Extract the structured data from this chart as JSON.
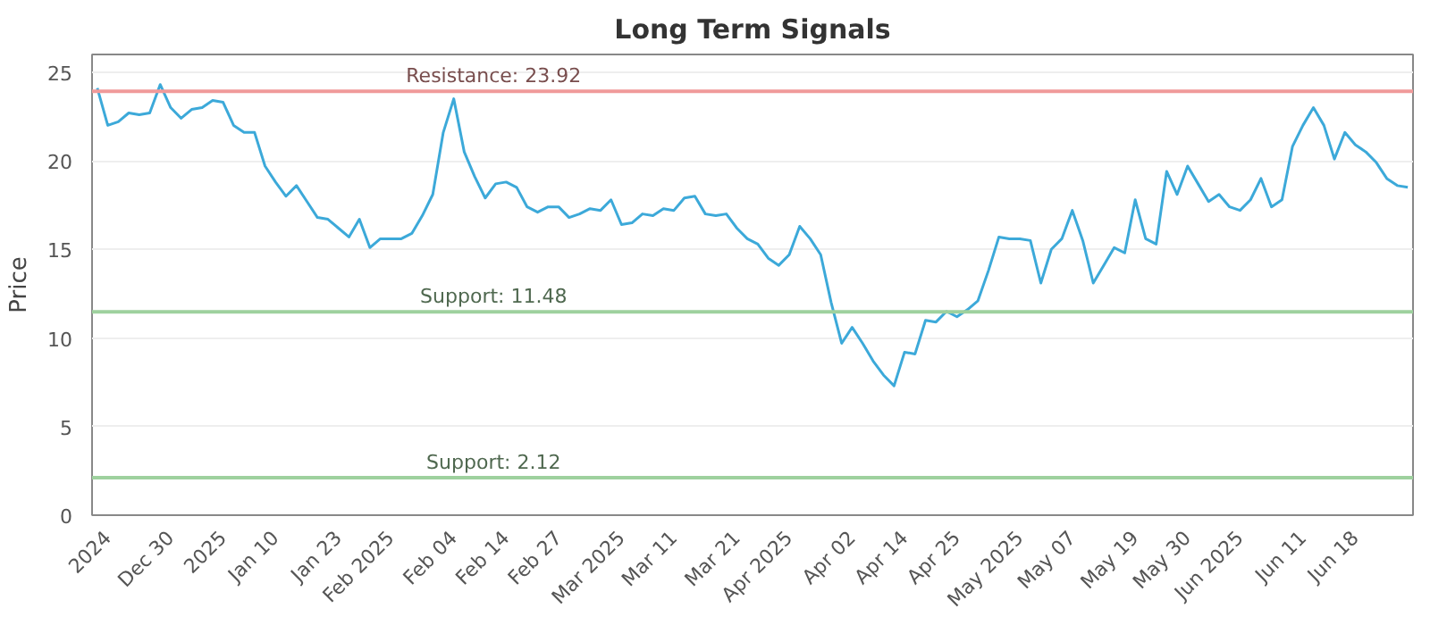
{
  "chart_data": {
    "type": "line",
    "title": "Long Term Signals",
    "ylabel": "Price",
    "categories": [
      null,
      "2024",
      null,
      null,
      null,
      null,
      null,
      "Dec 30",
      null,
      null,
      null,
      null,
      "2025",
      null,
      null,
      null,
      null,
      "Jan 10",
      null,
      null,
      null,
      null,
      null,
      "Jan 23",
      null,
      null,
      null,
      null,
      "Feb 2025",
      null,
      null,
      null,
      null,
      null,
      "Feb 04",
      null,
      null,
      null,
      null,
      "Feb 14",
      null,
      null,
      null,
      null,
      "Feb 27",
      null,
      null,
      null,
      null,
      null,
      "Mar 2025",
      null,
      null,
      null,
      null,
      "Mar 11",
      null,
      null,
      null,
      null,
      null,
      "Mar 21",
      null,
      null,
      null,
      null,
      "Apr 2025",
      null,
      null,
      null,
      null,
      null,
      "Apr 02",
      null,
      null,
      null,
      null,
      "Apr 14",
      null,
      null,
      null,
      null,
      "Apr 25",
      null,
      null,
      null,
      null,
      null,
      "May 2025",
      null,
      null,
      null,
      null,
      "May 07",
      null,
      null,
      null,
      null,
      null,
      "May 19",
      null,
      null,
      null,
      null,
      "May 30",
      null,
      null,
      null,
      null,
      "Jun 2025",
      null,
      null,
      null,
      null,
      null,
      "Jun 11",
      null,
      null,
      null,
      null,
      "Jun 18",
      null,
      null,
      null,
      null,
      null
    ],
    "series": [
      {
        "color": "#3ca9d9",
        "values": [
          24.1,
          22.0,
          22.2,
          22.7,
          22.6,
          22.7,
          24.3,
          23.0,
          22.4,
          22.9,
          23.0,
          23.4,
          23.3,
          22.0,
          21.6,
          21.6,
          19.7,
          18.8,
          18.0,
          18.6,
          17.7,
          16.8,
          16.7,
          16.2,
          15.7,
          16.7,
          15.1,
          15.6,
          15.6,
          15.6,
          15.9,
          16.9,
          18.1,
          21.6,
          23.5,
          20.5,
          19.1,
          17.9,
          18.7,
          18.8,
          18.5,
          17.4,
          17.1,
          17.4,
          17.4,
          16.8,
          17.0,
          17.3,
          17.2,
          17.8,
          16.4,
          16.5,
          17.0,
          16.9,
          17.3,
          17.2,
          17.9,
          18.0,
          17.0,
          16.9,
          17.0,
          16.2,
          15.6,
          15.3,
          14.5,
          14.1,
          14.7,
          16.3,
          15.6,
          14.7,
          12.0,
          9.7,
          10.6,
          9.7,
          8.7,
          7.9,
          7.3,
          9.2,
          9.1,
          11.0,
          10.9,
          11.5,
          11.2,
          11.6,
          12.1,
          13.8,
          15.7,
          15.6,
          15.6,
          15.5,
          13.1,
          15.0,
          15.6,
          17.2,
          15.5,
          13.1,
          14.1,
          15.1,
          14.8,
          17.8,
          15.6,
          15.3,
          19.4,
          18.1,
          19.7,
          18.7,
          17.7,
          18.1,
          17.4,
          17.2,
          17.8,
          19.0,
          17.4,
          17.8,
          20.8,
          22.0,
          23.0,
          22.0,
          20.1,
          21.6,
          20.9,
          20.5,
          19.9,
          19.0,
          18.6,
          18.5
        ]
      }
    ],
    "ylim": [
      0,
      26
    ],
    "yticks": [
      0,
      5,
      10,
      15,
      20,
      25
    ],
    "grid": "y",
    "marker": "none",
    "line_style": "solid",
    "ref_lines": [
      {
        "axis": "y",
        "value": 23.92,
        "label": "Resistance: 23.92",
        "color": "#f09a9a"
      },
      {
        "axis": "y",
        "value": 11.48,
        "label": "Support: 11.48",
        "color": "#9ed19e"
      },
      {
        "axis": "y",
        "value": 2.12,
        "label": "Support: 2.12",
        "color": "#9ed19e"
      }
    ]
  }
}
